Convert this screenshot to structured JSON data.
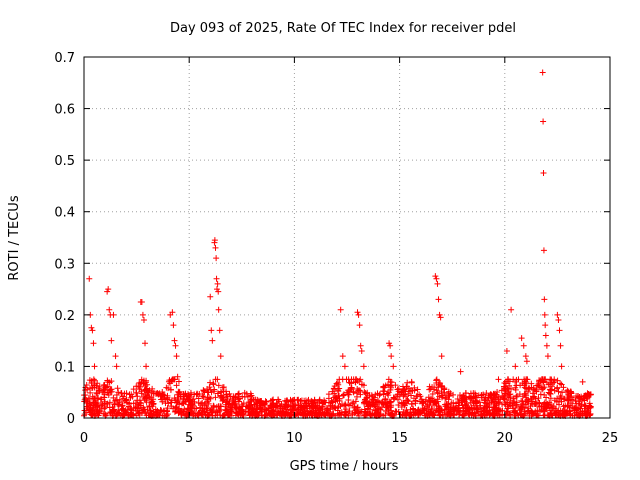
{
  "chart_data": {
    "type": "scatter",
    "title": "Day 093 of 2025, Rate Of TEC Index for receiver pdel",
    "xlabel": "GPS time / hours",
    "ylabel": "ROTI / TECUs",
    "xlim": [
      0,
      25
    ],
    "ylim": [
      0,
      0.7
    ],
    "x_ticks": [
      0,
      5,
      10,
      15,
      20,
      25
    ],
    "x_tick_labels": [
      "0",
      "5",
      "10",
      "15",
      "20",
      "25"
    ],
    "y_ticks": [
      0,
      0.1,
      0.2,
      0.3,
      0.4,
      0.5,
      0.6,
      0.7
    ],
    "y_tick_labels": [
      "0",
      "0.1",
      "0.2",
      "0.3",
      "0.4",
      "0.5",
      "0.6",
      "0.7"
    ],
    "grid": true,
    "marker": "+",
    "color": "#ff0000",
    "series": [
      {
        "name": "ROTI",
        "notes": "dense background band 0-0.06 across 0-24 h omitted from explicit list; outlier points below",
        "points": [
          [
            0.25,
            0.27
          ],
          [
            0.3,
            0.2
          ],
          [
            0.35,
            0.175
          ],
          [
            0.4,
            0.17
          ],
          [
            0.45,
            0.145
          ],
          [
            0.5,
            0.1
          ],
          [
            1.1,
            0.245
          ],
          [
            1.15,
            0.25
          ],
          [
            1.2,
            0.21
          ],
          [
            1.25,
            0.2
          ],
          [
            1.3,
            0.15
          ],
          [
            1.4,
            0.2
          ],
          [
            1.5,
            0.12
          ],
          [
            1.55,
            0.1
          ],
          [
            2.7,
            0.225
          ],
          [
            2.75,
            0.225
          ],
          [
            2.8,
            0.2
          ],
          [
            2.85,
            0.19
          ],
          [
            2.9,
            0.145
          ],
          [
            2.95,
            0.1
          ],
          [
            4.1,
            0.2
          ],
          [
            4.2,
            0.205
          ],
          [
            4.25,
            0.18
          ],
          [
            4.3,
            0.15
          ],
          [
            4.35,
            0.14
          ],
          [
            4.4,
            0.12
          ],
          [
            4.45,
            0.08
          ],
          [
            6.0,
            0.235
          ],
          [
            6.05,
            0.17
          ],
          [
            6.1,
            0.15
          ],
          [
            6.2,
            0.34
          ],
          [
            6.22,
            0.345
          ],
          [
            6.25,
            0.33
          ],
          [
            6.28,
            0.31
          ],
          [
            6.3,
            0.27
          ],
          [
            6.32,
            0.25
          ],
          [
            6.35,
            0.26
          ],
          [
            6.38,
            0.245
          ],
          [
            6.4,
            0.21
          ],
          [
            6.45,
            0.17
          ],
          [
            6.5,
            0.12
          ],
          [
            12.2,
            0.21
          ],
          [
            12.3,
            0.12
          ],
          [
            12.4,
            0.1
          ],
          [
            13.0,
            0.205
          ],
          [
            13.05,
            0.2
          ],
          [
            13.1,
            0.18
          ],
          [
            13.15,
            0.14
          ],
          [
            13.2,
            0.13
          ],
          [
            13.3,
            0.1
          ],
          [
            14.5,
            0.145
          ],
          [
            14.55,
            0.14
          ],
          [
            14.6,
            0.12
          ],
          [
            14.7,
            0.1
          ],
          [
            16.7,
            0.275
          ],
          [
            16.75,
            0.27
          ],
          [
            16.8,
            0.26
          ],
          [
            16.85,
            0.23
          ],
          [
            16.9,
            0.2
          ],
          [
            16.95,
            0.195
          ],
          [
            17.0,
            0.12
          ],
          [
            17.9,
            0.09
          ],
          [
            19.7,
            0.075
          ],
          [
            20.1,
            0.13
          ],
          [
            20.3,
            0.21
          ],
          [
            20.5,
            0.1
          ],
          [
            20.8,
            0.155
          ],
          [
            20.9,
            0.14
          ],
          [
            21.0,
            0.12
          ],
          [
            21.05,
            0.11
          ],
          [
            21.8,
            0.67
          ],
          [
            21.82,
            0.575
          ],
          [
            21.84,
            0.475
          ],
          [
            21.86,
            0.325
          ],
          [
            21.88,
            0.23
          ],
          [
            21.9,
            0.2
          ],
          [
            21.92,
            0.18
          ],
          [
            21.95,
            0.16
          ],
          [
            22.0,
            0.14
          ],
          [
            22.05,
            0.12
          ],
          [
            22.5,
            0.2
          ],
          [
            22.55,
            0.19
          ],
          [
            22.6,
            0.17
          ],
          [
            22.65,
            0.14
          ],
          [
            22.7,
            0.1
          ],
          [
            23.7,
            0.07
          ]
        ]
      }
    ]
  }
}
